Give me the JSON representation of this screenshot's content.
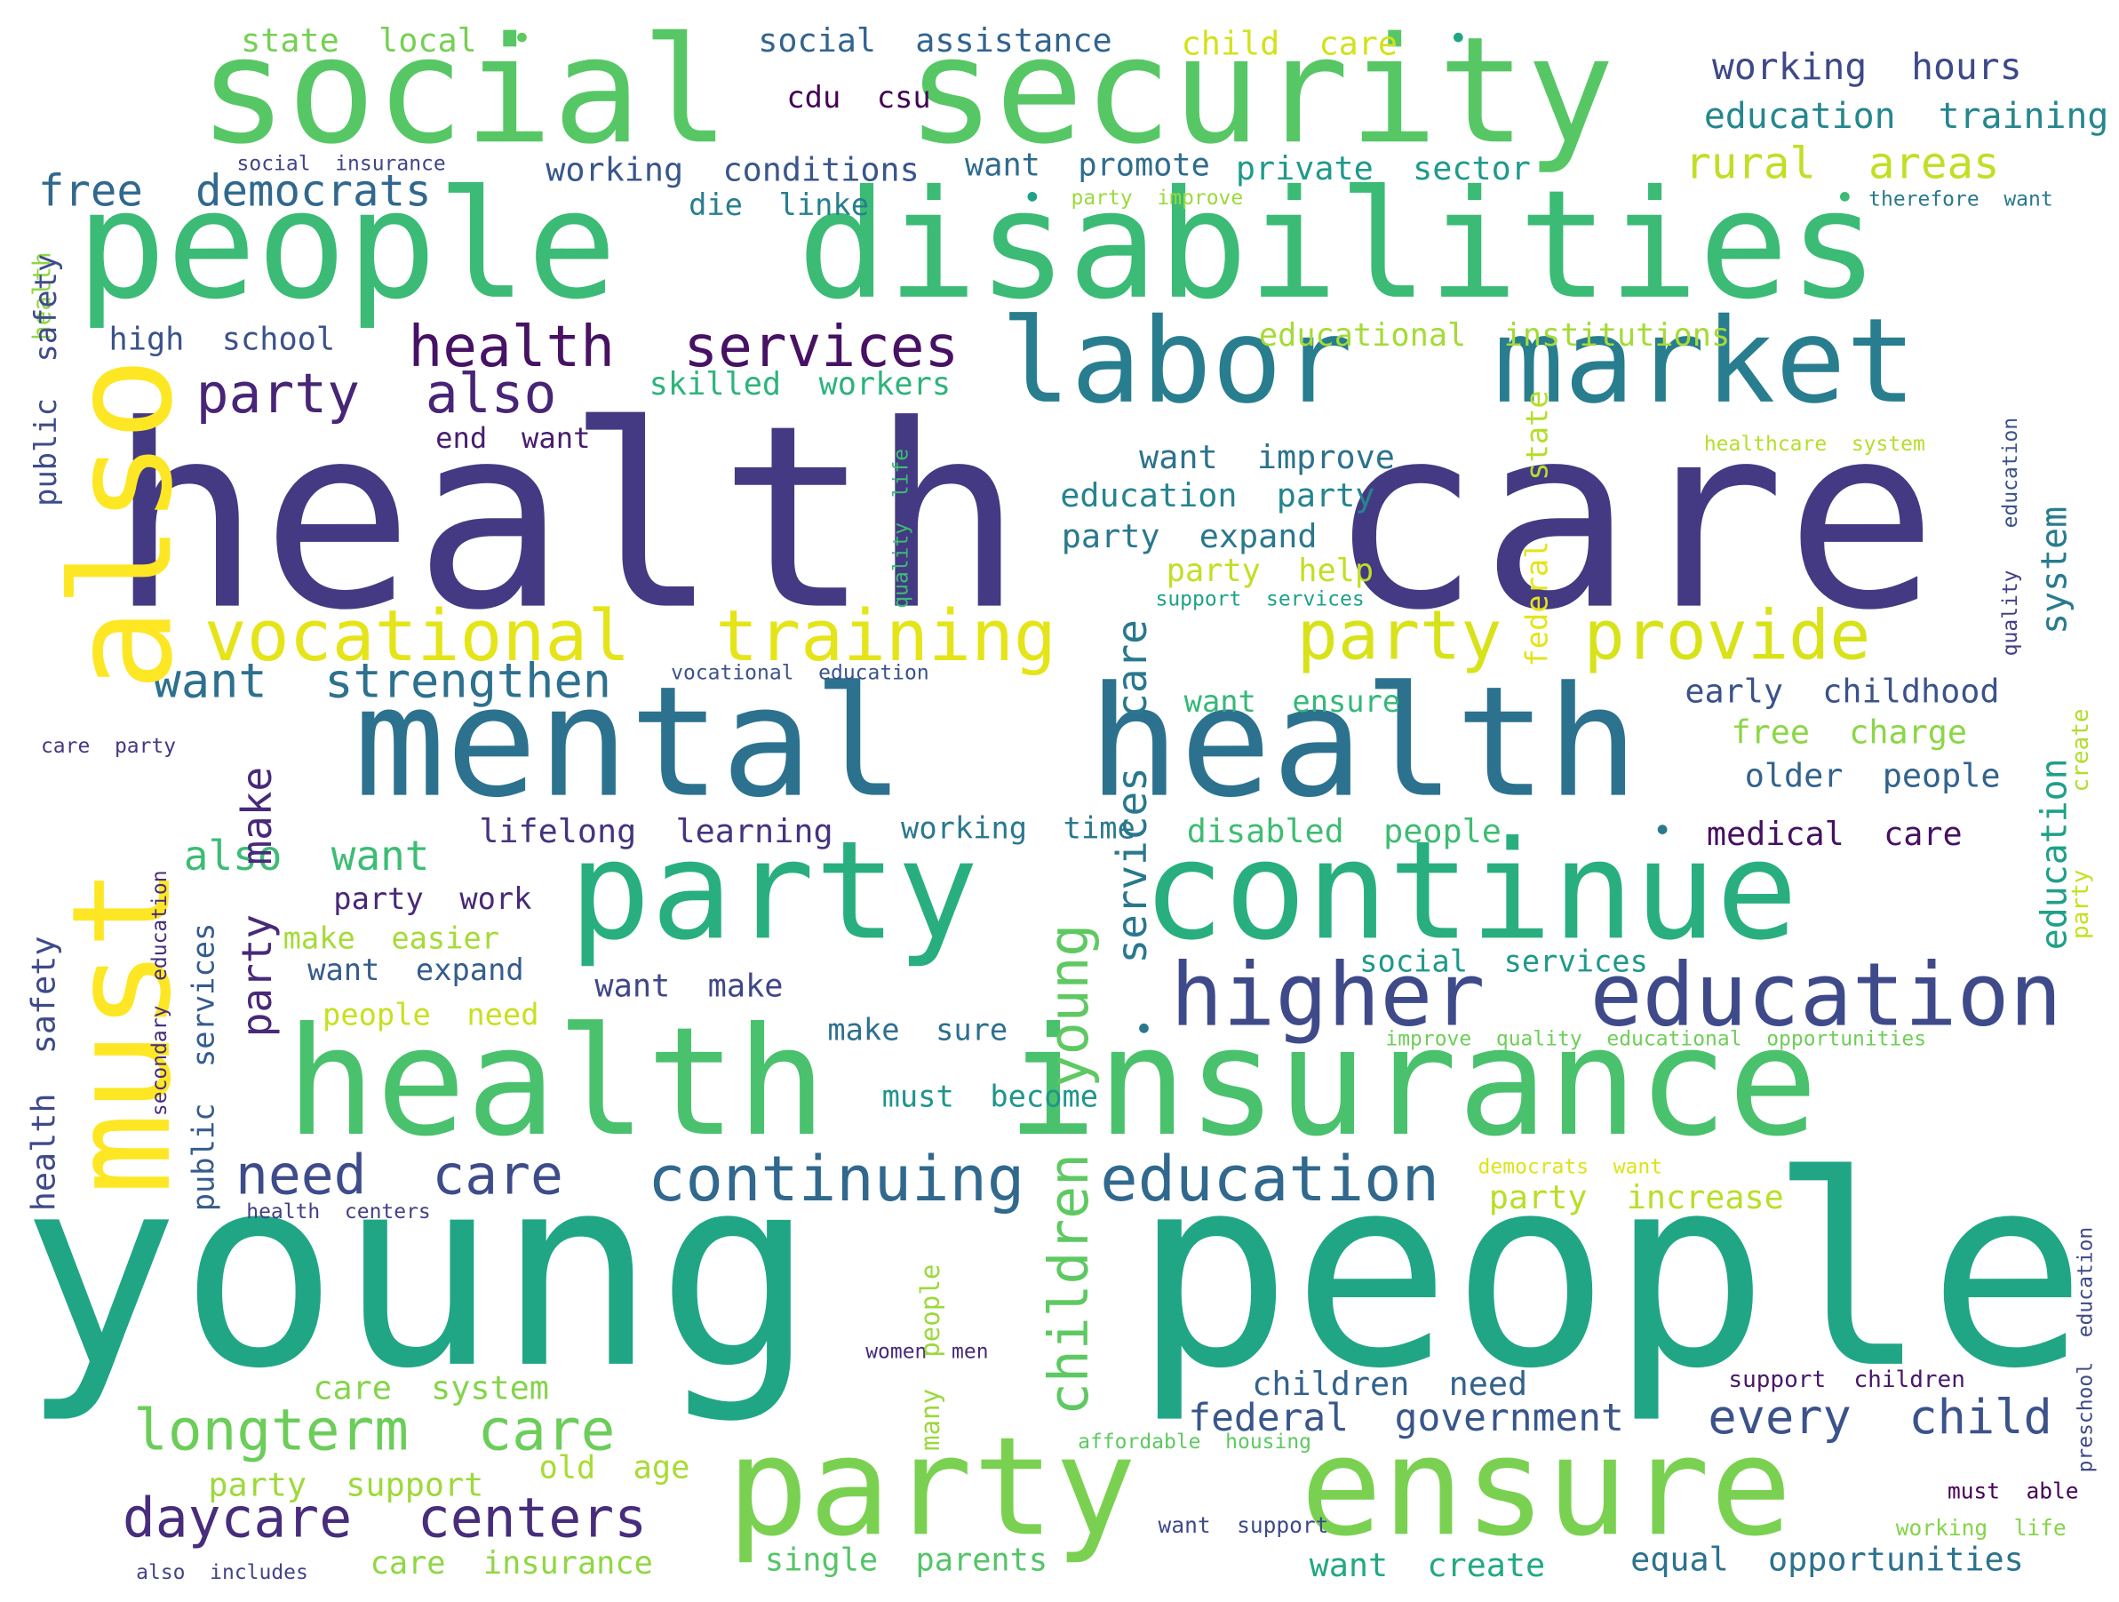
{
  "words": [
    {
      "text": "health  care",
      "color": "#443a83"
    },
    {
      "text": "young  people",
      "color": "#21a685"
    },
    {
      "text": "people  disabilities",
      "color": "#3bbb75"
    },
    {
      "text": "social  security",
      "color": "#57c766"
    },
    {
      "text": "health  insurance",
      "color": "#4ac16d"
    },
    {
      "text": "mental  health",
      "color": "#2c728e"
    },
    {
      "text": "party  continue",
      "color": "#29af7f"
    },
    {
      "text": "party  ensure",
      "color": "#7ad151"
    },
    {
      "text": "labor  market",
      "color": "#287d8e"
    },
    {
      "text": "also",
      "color": "#fde725"
    },
    {
      "text": "must",
      "color": "#fde725"
    },
    {
      "text": "higher  education",
      "color": "#3e4a89"
    },
    {
      "text": "vocational  training",
      "color": "#e5e419"
    },
    {
      "text": "party  provide",
      "color": "#d8e219"
    },
    {
      "text": "continuing  education",
      "color": "#31688e"
    },
    {
      "text": "health  services",
      "color": "#471164"
    },
    {
      "text": "party  also",
      "color": "#482576"
    },
    {
      "text": "longterm  care",
      "color": "#6ccd5a"
    },
    {
      "text": "daycare  centers",
      "color": "#472d7b"
    },
    {
      "text": "need  care",
      "color": "#3e4c8a"
    },
    {
      "text": "want  strengthen",
      "color": "#2d718e"
    },
    {
      "text": "children  young",
      "color": "#5ec962"
    },
    {
      "text": "services  care",
      "color": "#2a788e"
    },
    {
      "text": "free  democrats",
      "color": "#31688e"
    },
    {
      "text": "rural  areas",
      "color": "#c0df25"
    },
    {
      "text": "every  child",
      "color": "#3b528b"
    },
    {
      "text": "federal  government",
      "color": "#39568c"
    },
    {
      "text": "also  want",
      "color": "#3dbc74"
    },
    {
      "text": "party  make",
      "color": "#482979"
    },
    {
      "text": "social  assistance",
      "color": "#32648e"
    },
    {
      "text": "state  local",
      "color": "#75d054"
    },
    {
      "text": "child  care",
      "color": "#d2e21b"
    },
    {
      "text": "working  hours",
      "color": "#3e4989"
    },
    {
      "text": "education  training",
      "color": "#24878e"
    },
    {
      "text": "cdu  csu",
      "color": "#440154"
    },
    {
      "text": "working  conditions",
      "color": "#39568c"
    },
    {
      "text": "want  promote",
      "color": "#2f6c8e"
    },
    {
      "text": "private  sector",
      "color": "#1f9a8a"
    },
    {
      "text": "die  linke",
      "color": "#277f8e"
    },
    {
      "text": "social  insurance",
      "color": "#414487"
    },
    {
      "text": "party  improve",
      "color": "#9bd93c"
    },
    {
      "text": "therefore  want",
      "color": "#2a788e"
    },
    {
      "text": "high  school",
      "color": "#3b528b"
    },
    {
      "text": "educational  institutions",
      "color": "#a5db36"
    },
    {
      "text": "skilled  workers",
      "color": "#2eb37c"
    },
    {
      "text": "end  want",
      "color": "#481d6f"
    },
    {
      "text": "want  improve",
      "color": "#2c728e"
    },
    {
      "text": "education  party",
      "color": "#25848e"
    },
    {
      "text": "party  expand",
      "color": "#2a788e"
    },
    {
      "text": "party  help",
      "color": "#c2df23"
    },
    {
      "text": "support  services",
      "color": "#1fa188"
    },
    {
      "text": "healthcare  system",
      "color": "#b5de2b"
    },
    {
      "text": "vocational  education",
      "color": "#3b528b"
    },
    {
      "text": "want  ensure",
      "color": "#35b779"
    },
    {
      "text": "early  childhood",
      "color": "#3b528b"
    },
    {
      "text": "free  charge",
      "color": "#8bd646"
    },
    {
      "text": "older  people",
      "color": "#33638d"
    },
    {
      "text": "care  party",
      "color": "#453781"
    },
    {
      "text": "lifelong  learning",
      "color": "#46337f"
    },
    {
      "text": "working  time",
      "color": "#2a788e"
    },
    {
      "text": "disabled  people",
      "color": "#3fbc73"
    },
    {
      "text": "medical  care",
      "color": "#471063"
    },
    {
      "text": "party  work",
      "color": "#482878"
    },
    {
      "text": "make  easier",
      "color": "#a5db36"
    },
    {
      "text": "want  expand",
      "color": "#365c8d"
    },
    {
      "text": "want  make",
      "color": "#3f4788"
    },
    {
      "text": "social  services",
      "color": "#1f988b"
    },
    {
      "text": "people  need",
      "color": "#c8e020"
    },
    {
      "text": "make  sure",
      "color": "#2d708e"
    },
    {
      "text": "improve  quality  educational  opportunities",
      "color": "#6ece58"
    },
    {
      "text": "must  become",
      "color": "#1f958b"
    },
    {
      "text": "democrats  want",
      "color": "#dde318"
    },
    {
      "text": "party  increase",
      "color": "#b8de29"
    },
    {
      "text": "health  centers",
      "color": "#433e85"
    },
    {
      "text": "women  men",
      "color": "#472a7a"
    },
    {
      "text": "care  system",
      "color": "#84d44b"
    },
    {
      "text": "children  need",
      "color": "#33638d"
    },
    {
      "text": "support  children",
      "color": "#481769"
    },
    {
      "text": "affordable  housing",
      "color": "#5ec962"
    },
    {
      "text": "party  support",
      "color": "#9dd93b"
    },
    {
      "text": "old  age",
      "color": "#a8db34"
    },
    {
      "text": "must  able",
      "color": "#440154"
    },
    {
      "text": "want  support",
      "color": "#3e4989"
    },
    {
      "text": "working  life",
      "color": "#84d44b"
    },
    {
      "text": "care  insurance",
      "color": "#90d743"
    },
    {
      "text": "single  parents",
      "color": "#54c568"
    },
    {
      "text": "want  create",
      "color": "#22a884"
    },
    {
      "text": "equal  opportunities",
      "color": "#2c728e"
    },
    {
      "text": "also  includes",
      "color": "#414487"
    },
    {
      "text": "health",
      "color": "#8fd744"
    },
    {
      "text": "public  safety",
      "color": "#3e4c8a"
    },
    {
      "text": "health  safety",
      "color": "#3e4a89"
    },
    {
      "text": "secondary  education",
      "color": "#472c7a"
    },
    {
      "text": "public  services",
      "color": "#365c8d"
    },
    {
      "text": "quality  life",
      "color": "#3dbc74"
    },
    {
      "text": "many  people",
      "color": "#9bd93c"
    },
    {
      "text": "state",
      "color": "#b5de2b"
    },
    {
      "text": "federal",
      "color": "#e5e419"
    },
    {
      "text": "system",
      "color": "#287c8e"
    },
    {
      "text": "education",
      "color": "#1fa088"
    },
    {
      "text": "education",
      "color": "#3b528b"
    },
    {
      "text": "quality",
      "color": "#433e85"
    },
    {
      "text": "create",
      "color": "#b2dd2d"
    },
    {
      "text": "party",
      "color": "#c5e021"
    },
    {
      "text": "preschool  education",
      "color": "#3e4989"
    }
  ]
}
